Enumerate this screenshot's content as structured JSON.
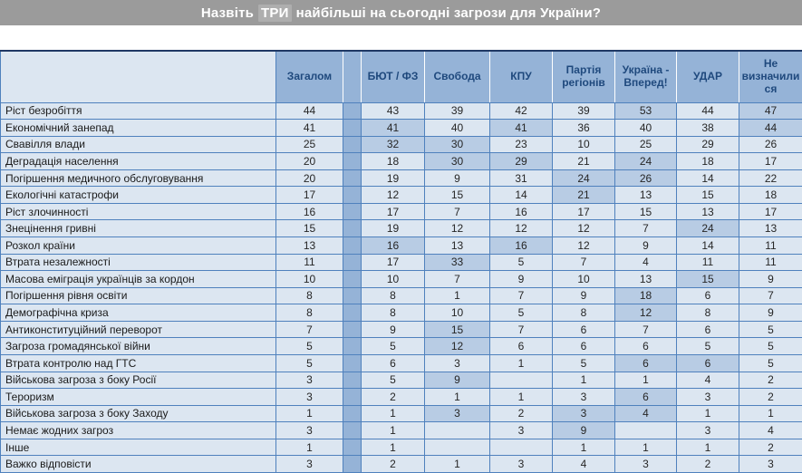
{
  "title": {
    "prefix": "Назвіть",
    "highlight": "ТРИ",
    "suffix": "найбільші на сьогодні загрози для України?"
  },
  "colors": {
    "title_bar_bg": "#9b9b9b",
    "title_text": "#ffffff",
    "title_highlight_bg": "#aeaeae",
    "header_bg": "#95b3d7",
    "header_text": "#1f497d",
    "cell_bg": "#dce6f1",
    "cell_highlight_bg": "#b8cce4",
    "separator_column_bg": "#95b3d7",
    "border": "#4f81bd"
  },
  "chart_data": {
    "type": "table",
    "title": "Назвіть ТРИ найбільші на сьогодні загрози для України?",
    "columns": [
      "Загалом",
      "БЮТ / ФЗ",
      "Свобода",
      "КПУ",
      "Партія регіонів",
      "Україна - Вперед!",
      "УДАР",
      "Не визначилися"
    ],
    "highlight_meaning": "darker blue cell shading marks notably high values within row",
    "rows": [
      {
        "label": "Ріст безробіття",
        "values": [
          44,
          43,
          39,
          42,
          39,
          53,
          44,
          47
        ],
        "highlighted_columns": [
          5,
          7
        ]
      },
      {
        "label": "Економічний занепад",
        "values": [
          41,
          41,
          40,
          41,
          36,
          40,
          38,
          44
        ],
        "highlighted_columns": [
          1,
          3,
          7
        ]
      },
      {
        "label": "Свавілля влади",
        "values": [
          25,
          32,
          30,
          23,
          10,
          25,
          29,
          26
        ],
        "highlighted_columns": [
          1,
          2
        ]
      },
      {
        "label": "Деградація населення",
        "values": [
          20,
          18,
          30,
          29,
          21,
          24,
          18,
          17
        ],
        "highlighted_columns": [
          2,
          3,
          5
        ]
      },
      {
        "label": "Погіршення медичного обслуговування",
        "values": [
          20,
          19,
          9,
          31,
          24,
          26,
          14,
          22
        ],
        "highlighted_columns": [
          4,
          5
        ]
      },
      {
        "label": "Екологічні катастрофи",
        "values": [
          17,
          12,
          15,
          14,
          21,
          13,
          15,
          18
        ],
        "highlighted_columns": [
          4
        ]
      },
      {
        "label": "Ріст злочинності",
        "values": [
          16,
          17,
          7,
          16,
          17,
          15,
          13,
          17
        ],
        "highlighted_columns": []
      },
      {
        "label": "Знецінення гривні",
        "values": [
          15,
          19,
          12,
          12,
          12,
          7,
          24,
          13
        ],
        "highlighted_columns": [
          6
        ]
      },
      {
        "label": "Розкол країни",
        "values": [
          13,
          16,
          13,
          16,
          12,
          9,
          14,
          11
        ],
        "highlighted_columns": [
          1,
          3
        ]
      },
      {
        "label": "Втрата незалежності",
        "values": [
          11,
          17,
          33,
          5,
          7,
          4,
          11,
          11
        ],
        "highlighted_columns": [
          2
        ]
      },
      {
        "label": "Масова еміграція українців за кордон",
        "values": [
          10,
          10,
          7,
          9,
          10,
          13,
          15,
          9
        ],
        "highlighted_columns": [
          6
        ]
      },
      {
        "label": "Погіршення рівня освіти",
        "values": [
          8,
          8,
          1,
          7,
          9,
          18,
          6,
          7
        ],
        "highlighted_columns": [
          5
        ]
      },
      {
        "label": "Демографічна криза",
        "values": [
          8,
          8,
          10,
          5,
          8,
          12,
          8,
          9
        ],
        "highlighted_columns": [
          5
        ]
      },
      {
        "label": "Антиконституційний переворот",
        "values": [
          7,
          9,
          15,
          7,
          6,
          7,
          6,
          5
        ],
        "highlighted_columns": [
          2
        ]
      },
      {
        "label": "Загроза громадянської війни",
        "values": [
          5,
          5,
          12,
          6,
          6,
          6,
          5,
          5
        ],
        "highlighted_columns": [
          2
        ]
      },
      {
        "label": "Втрата контролю над ГТС",
        "values": [
          5,
          6,
          3,
          1,
          5,
          6,
          6,
          5
        ],
        "highlighted_columns": [
          5,
          6
        ]
      },
      {
        "label": "Військова загроза з боку Росії",
        "values": [
          3,
          5,
          9,
          "",
          1,
          1,
          4,
          2
        ],
        "highlighted_columns": [
          2
        ]
      },
      {
        "label": "Тероризм",
        "values": [
          3,
          2,
          1,
          1,
          3,
          6,
          3,
          2
        ],
        "highlighted_columns": [
          5
        ]
      },
      {
        "label": "Військова загроза з боку Заходу",
        "values": [
          1,
          1,
          3,
          2,
          3,
          4,
          1,
          1
        ],
        "highlighted_columns": [
          2,
          4,
          5
        ]
      },
      {
        "label": "Немає жодних загроз",
        "values": [
          3,
          1,
          "",
          3,
          9,
          "",
          3,
          4
        ],
        "highlighted_columns": [
          4
        ]
      },
      {
        "label": "Інше",
        "values": [
          1,
          1,
          "",
          "",
          1,
          1,
          1,
          2
        ],
        "highlighted_columns": []
      },
      {
        "label": "Важко відповісти",
        "values": [
          3,
          2,
          1,
          3,
          4,
          3,
          2,
          3
        ],
        "highlighted_columns": []
      }
    ]
  }
}
